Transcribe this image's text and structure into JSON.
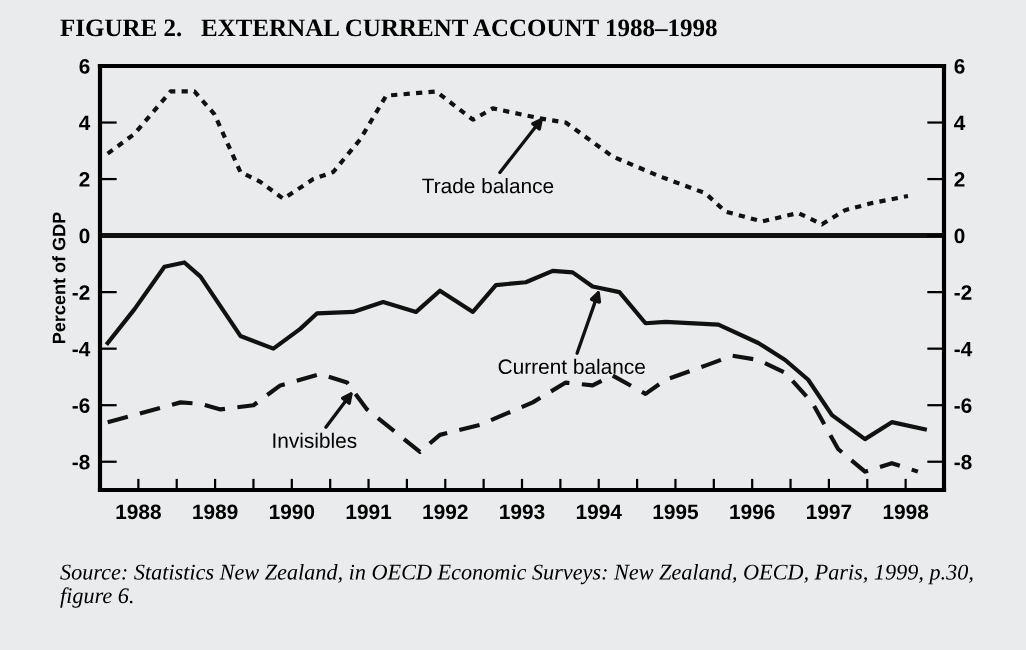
{
  "chart_data": {
    "type": "line",
    "title": "FIGURE 2.   EXTERNAL CURRENT ACCOUNT 1988–1998",
    "ylabel": "Percent of GDP",
    "xlim": [
      1988,
      1999
    ],
    "xticks": [
      {
        "value": 1988.5,
        "label": "1988"
      },
      {
        "value": 1989.5,
        "label": "1989"
      },
      {
        "value": 1990.5,
        "label": "1990"
      },
      {
        "value": 1991.5,
        "label": "1991"
      },
      {
        "value": 1992.5,
        "label": "1992"
      },
      {
        "value": 1993.5,
        "label": "1993"
      },
      {
        "value": 1994.5,
        "label": "1994"
      },
      {
        "value": 1995.5,
        "label": "1995"
      },
      {
        "value": 1996.5,
        "label": "1996"
      },
      {
        "value": 1997.5,
        "label": "1997"
      },
      {
        "value": 1998.5,
        "label": "1998"
      },
      {
        "value": 1989,
        "label": null
      },
      {
        "value": 1990,
        "label": null
      },
      {
        "value": 1991,
        "label": null
      },
      {
        "value": 1992,
        "label": null
      },
      {
        "value": 1993,
        "label": null
      },
      {
        "value": 1994,
        "label": null
      },
      {
        "value": 1995,
        "label": null
      },
      {
        "value": 1996,
        "label": null
      },
      {
        "value": 1997,
        "label": null
      },
      {
        "value": 1998,
        "label": null
      }
    ],
    "ylim": [
      -9,
      6
    ],
    "yticks": [
      -8,
      -6,
      -4,
      -2,
      0,
      2,
      4,
      6
    ],
    "y2lim": [
      -9,
      6
    ],
    "y2ticks": [
      -8,
      -6,
      -4,
      -2,
      0,
      2,
      4,
      6
    ],
    "grid": false,
    "legend": false,
    "marker": "none",
    "ref_lines": [
      {
        "axis": "y",
        "value": 0,
        "label": null,
        "color": "#111111",
        "line_style": "solid"
      }
    ],
    "series": [
      {
        "color": "#111111",
        "line_style": "dotted",
        "x": [
          1988.1,
          1988.45,
          1988.92,
          1989.23,
          1989.49,
          1989.83,
          1990.09,
          1990.39,
          1990.78,
          1991.04,
          1991.39,
          1991.73,
          1992.38,
          1992.86,
          1993.12,
          1993.73,
          1994.07,
          1994.68,
          1995.29,
          1995.89,
          1996.15,
          1996.63,
          1997.1,
          1997.41,
          1997.71,
          1998.06,
          1998.53
        ],
        "values": [
          2.9,
          3.6,
          5.1,
          5.1,
          4.3,
          2.25,
          1.9,
          1.3,
          2.0,
          2.25,
          3.4,
          4.95,
          5.1,
          4.1,
          4.5,
          4.15,
          4.0,
          2.8,
          2.1,
          1.5,
          0.85,
          0.5,
          0.8,
          0.4,
          0.9,
          1.15,
          1.4
        ]
      },
      {
        "color": "#111111",
        "line_style": "solid",
        "x": [
          1988.1,
          1988.45,
          1988.84,
          1989.1,
          1989.31,
          1989.83,
          1990.26,
          1990.61,
          1990.83,
          1991.3,
          1991.69,
          1992.12,
          1992.43,
          1992.86,
          1993.16,
          1993.55,
          1993.9,
          1994.16,
          1994.42,
          1994.77,
          1995.11,
          1995.37,
          1996.06,
          1996.58,
          1996.93,
          1997.23,
          1997.54,
          1997.97,
          1998.32,
          1998.75
        ],
        "values": [
          -3.8,
          -2.6,
          -1.1,
          -0.95,
          -1.45,
          -3.55,
          -4.0,
          -3.3,
          -2.75,
          -2.7,
          -2.35,
          -2.7,
          -1.95,
          -2.7,
          -1.75,
          -1.65,
          -1.25,
          -1.3,
          -1.8,
          -2.0,
          -3.1,
          -3.05,
          -3.15,
          -3.8,
          -4.4,
          -5.1,
          -6.35,
          -7.2,
          -6.6,
          -6.85
        ]
      },
      {
        "color": "#111111",
        "line_style": "dashed",
        "x": [
          1988.1,
          1988.45,
          1989.05,
          1989.31,
          1989.57,
          1990.0,
          1990.35,
          1990.87,
          1991.22,
          1991.48,
          1992.17,
          1992.43,
          1992.95,
          1993.64,
          1994.07,
          1994.42,
          1994.68,
          1995.11,
          1995.37,
          1995.89,
          1996.24,
          1996.58,
          1996.93,
          1997.28,
          1997.62,
          1997.97,
          1998.32,
          1998.66
        ],
        "values": [
          -6.6,
          -6.35,
          -5.9,
          -5.95,
          -6.15,
          -6.0,
          -5.3,
          -4.9,
          -5.2,
          -6.15,
          -7.65,
          -7.05,
          -6.7,
          -5.9,
          -5.2,
          -5.3,
          -4.95,
          -5.6,
          -5.1,
          -4.6,
          -4.25,
          -4.4,
          -4.85,
          -5.9,
          -7.55,
          -8.35,
          -8.05,
          -8.35
        ]
      }
    ],
    "annotations": [
      {
        "text": "Trade balance",
        "x": 1993.78,
        "y": 4.2
      },
      {
        "text": "Current balance",
        "x": 1994.51,
        "y": -1.9
      },
      {
        "text": "Invisibles",
        "x": 1991.3,
        "y": -5.5
      },
      "Source: Statistics New Zealand, in OECD Economic Surveys: New Zealand, OECD, Paris, 1999, p.30, figure 6."
    ]
  }
}
